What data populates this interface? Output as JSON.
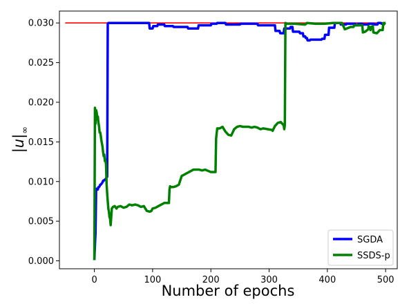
{
  "chart_data": {
    "type": "line",
    "title": "",
    "xlabel": "Number of epochs",
    "ylabel_base": "|u|",
    "ylabel_sub": "∞",
    "xlim": [
      -60,
      520
    ],
    "ylim": [
      -0.001,
      0.0315
    ],
    "xticks": [
      0,
      100,
      200,
      300,
      400,
      500
    ],
    "xtick_labels": [
      "0",
      "100",
      "200",
      "300",
      "400",
      "500"
    ],
    "yticks": [
      0.0,
      0.005,
      0.01,
      0.015,
      0.02,
      0.025,
      0.03
    ],
    "ytick_labels": [
      "0.000",
      "0.005",
      "0.010",
      "0.015",
      "0.020",
      "0.025",
      "0.030"
    ],
    "grid": false,
    "legend_position": "lower-right",
    "reference_line": {
      "color": "#ff0000",
      "x": [
        -50,
        500
      ],
      "y": [
        0.03,
        0.03
      ]
    },
    "series": [
      {
        "name": "SGDA",
        "color": "#0000ff",
        "x": [
          0,
          1,
          2,
          3,
          4,
          5,
          6,
          7,
          8,
          9,
          10,
          11,
          12,
          13,
          14,
          15,
          16,
          17,
          18,
          19,
          20,
          21,
          22,
          23,
          24,
          94,
          95,
          100,
          101,
          108,
          109,
          120,
          121,
          135,
          136,
          160,
          161,
          178,
          179,
          200,
          201,
          210,
          211,
          225,
          226,
          250,
          251,
          280,
          281,
          310,
          311,
          318,
          319,
          325,
          326,
          336,
          337,
          340,
          341,
          352,
          353,
          358,
          359,
          362,
          363,
          365,
          366,
          370,
          371,
          390,
          391,
          395,
          396,
          402,
          403,
          412,
          413,
          422,
          423,
          432,
          433,
          448,
          449,
          452,
          453,
          460,
          461,
          470,
          471,
          480,
          481,
          486,
          487,
          492,
          493,
          500
        ],
        "y": [
          0.0001,
          0.002,
          0.0035,
          0.009,
          0.0091,
          0.0091,
          0.009,
          0.0093,
          0.0093,
          0.0094,
          0.0096,
          0.0096,
          0.0097,
          0.0098,
          0.0099,
          0.0101,
          0.0101,
          0.0102,
          0.0102,
          0.0103,
          0.0104,
          0.0105,
          0.0106,
          0.0299,
          0.03,
          0.03,
          0.0293,
          0.0293,
          0.0296,
          0.0296,
          0.0298,
          0.0298,
          0.0296,
          0.0296,
          0.0295,
          0.0295,
          0.0293,
          0.0293,
          0.0297,
          0.0297,
          0.0299,
          0.0299,
          0.03,
          0.03,
          0.0298,
          0.0298,
          0.0299,
          0.0299,
          0.0297,
          0.0297,
          0.029,
          0.029,
          0.0287,
          0.0287,
          0.0293,
          0.0293,
          0.0295,
          0.0295,
          0.0289,
          0.0289,
          0.0287,
          0.0287,
          0.0283,
          0.0283,
          0.0281,
          0.0281,
          0.0278,
          0.0278,
          0.0279,
          0.0279,
          0.028,
          0.028,
          0.0285,
          0.0285,
          0.0294,
          0.0294,
          0.03,
          0.03,
          0.0298,
          0.0298,
          0.0299,
          0.0299,
          0.0297,
          0.0297,
          0.0299,
          0.0299,
          0.0298,
          0.0298,
          0.0299,
          0.0299,
          0.0298,
          0.0298,
          0.03,
          0.03,
          0.0299,
          0.03
        ]
      },
      {
        "name": "SSDS-p",
        "color": "#008000",
        "x": [
          0,
          1,
          2,
          3,
          4,
          5,
          6,
          7,
          8,
          9,
          10,
          11,
          12,
          13,
          14,
          15,
          16,
          17,
          18,
          19,
          20,
          21,
          22,
          23,
          24,
          25,
          26,
          27,
          28,
          30,
          32,
          35,
          38,
          40,
          45,
          50,
          55,
          60,
          65,
          70,
          75,
          80,
          85,
          90,
          95,
          98,
          100,
          105,
          110,
          115,
          120,
          128,
          129,
          130,
          131,
          135,
          140,
          145,
          150,
          155,
          160,
          165,
          170,
          175,
          180,
          185,
          190,
          200,
          208,
          209,
          210,
          211,
          215,
          220,
          225,
          230,
          235,
          240,
          245,
          250,
          255,
          260,
          265,
          270,
          275,
          280,
          285,
          290,
          305,
          306,
          308,
          310,
          315,
          320,
          325,
          326,
          327,
          328,
          330,
          345,
          360,
          362,
          365,
          380,
          395,
          410,
          420,
          425,
          430,
          440,
          445,
          446,
          450,
          460,
          461,
          465,
          470,
          471,
          474,
          475,
          478,
          479,
          485,
          490,
          491,
          495,
          496,
          497,
          498,
          499,
          500
        ],
        "y": [
          0.0001,
          0.0193,
          0.0173,
          0.019,
          0.0187,
          0.0179,
          0.0182,
          0.0174,
          0.017,
          0.0162,
          0.0162,
          0.0158,
          0.0152,
          0.0148,
          0.0144,
          0.0137,
          0.0132,
          0.0134,
          0.0126,
          0.0127,
          0.0122,
          0.0097,
          0.0085,
          0.0075,
          0.0066,
          0.0062,
          0.0055,
          0.0053,
          0.0045,
          0.0066,
          0.0068,
          0.0069,
          0.0066,
          0.0068,
          0.0069,
          0.0067,
          0.0068,
          0.0071,
          0.007,
          0.0071,
          0.007,
          0.0068,
          0.0069,
          0.0063,
          0.0062,
          0.0063,
          0.0066,
          0.0067,
          0.0069,
          0.0071,
          0.0073,
          0.0073,
          0.009,
          0.0094,
          0.0093,
          0.0093,
          0.0094,
          0.0096,
          0.0107,
          0.0109,
          0.0111,
          0.0113,
          0.0115,
          0.0115,
          0.0115,
          0.0114,
          0.0115,
          0.0112,
          0.0112,
          0.0154,
          0.0161,
          0.0167,
          0.0167,
          0.0169,
          0.0163,
          0.0159,
          0.0158,
          0.0166,
          0.0169,
          0.017,
          0.0169,
          0.0169,
          0.0169,
          0.0168,
          0.0169,
          0.0168,
          0.0166,
          0.0167,
          0.0165,
          0.0164,
          0.0167,
          0.017,
          0.0174,
          0.0175,
          0.0171,
          0.0166,
          0.0171,
          0.03,
          0.0299,
          0.0299,
          0.0298,
          0.0298,
          0.03,
          0.0299,
          0.0299,
          0.03,
          0.03,
          0.03,
          0.0292,
          0.0295,
          0.0295,
          0.0297,
          0.0297,
          0.0297,
          0.0288,
          0.0289,
          0.0292,
          0.0296,
          0.0291,
          0.0295,
          0.0296,
          0.0288,
          0.0287,
          0.0291,
          0.0291,
          0.0291,
          0.03,
          0.0298,
          0.0299,
          0.03,
          0.03
        ]
      }
    ]
  }
}
